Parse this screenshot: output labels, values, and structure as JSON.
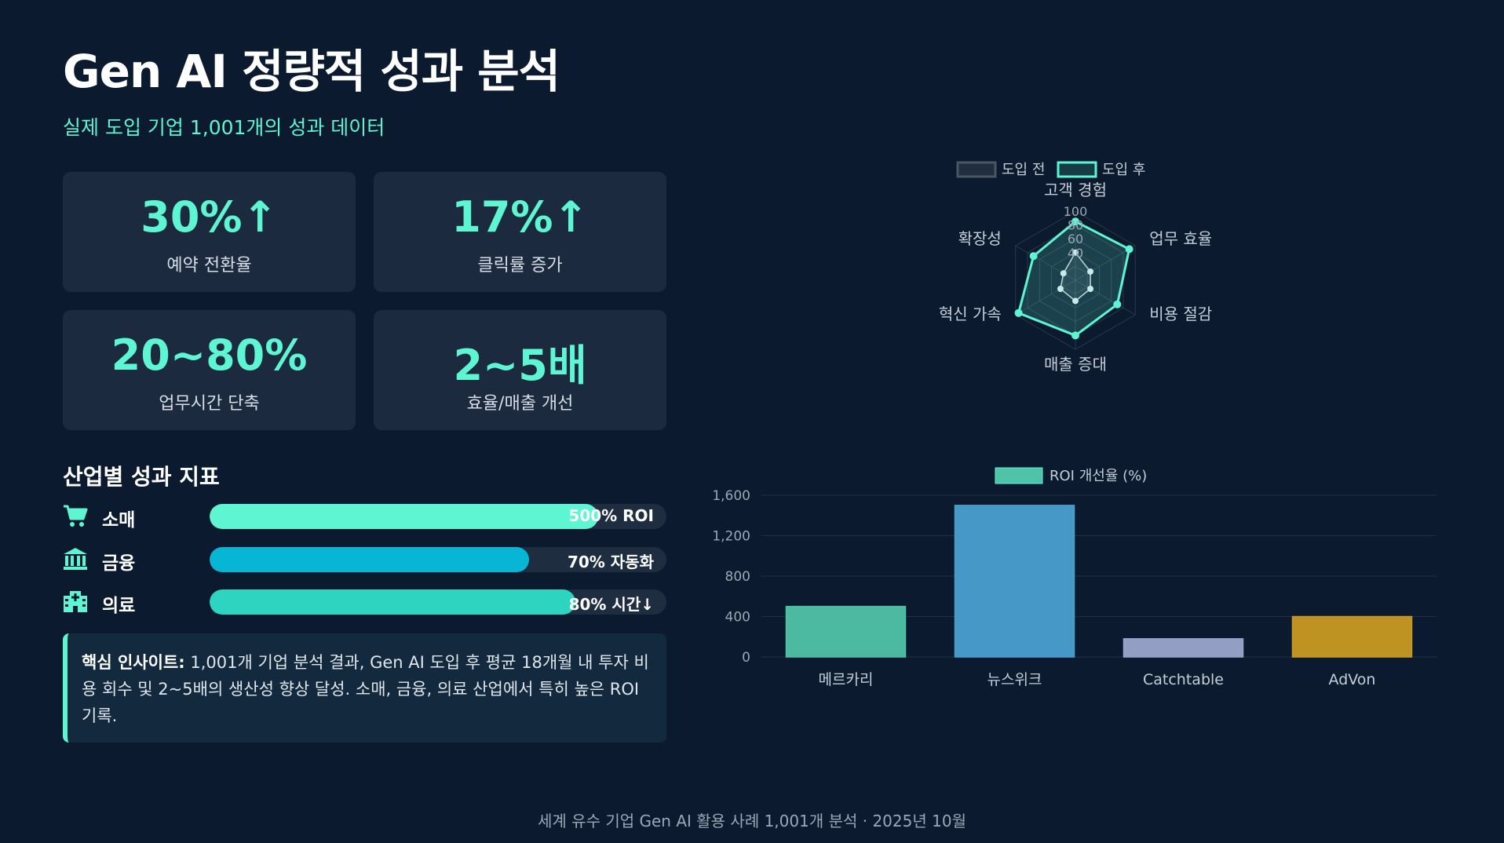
{
  "header": {
    "title": "Gen AI 정량적 성과 분석",
    "subtitle": "실제 도입 기업 1,001개의 성과 데이터"
  },
  "kpis": [
    {
      "value": "30%↑",
      "label": "예약 전환율"
    },
    {
      "value": "17%↑",
      "label": "클릭률 증가"
    },
    {
      "value": "20~80%",
      "label": "업무시간 단축"
    },
    {
      "value": "2~5배",
      "label": "효율/매출 개선"
    }
  ],
  "industry": {
    "title": "산업별 성과 지표",
    "rows": [
      {
        "icon": "shopping-cart-icon",
        "label": "소매",
        "value": "500% ROI",
        "fill": 0.85,
        "color": "#5ef5d2"
      },
      {
        "icon": "bank-icon",
        "label": "금융",
        "value": "70% 자동화",
        "fill": 0.7,
        "color": "#06b6d4"
      },
      {
        "icon": "hospital-icon",
        "label": "의료",
        "value": "80% 시간↓",
        "fill": 0.8,
        "color": "#2dd4bf"
      }
    ]
  },
  "insight": {
    "label": "핵심 인사이트:",
    "text": "1,001개 기업 분석 결과, Gen AI 도입 후 평균 18개월 내 투자 비용 회수 및 2~5배의 생산성 향상 달성. 소매, 금융, 의료 산업에서 특히 높은 ROI 기록."
  },
  "footer": "세계 유수 기업 Gen AI 활용 사례 1,001개 분석 · 2025년 10월",
  "chart_data": [
    {
      "type": "radar",
      "axes": [
        "고객 경험",
        "업무 효율",
        "비용 절감",
        "매출 증대",
        "혁신 가속",
        "확장성"
      ],
      "ticks": [
        "100",
        "80",
        "60",
        "40"
      ],
      "rmax": 100,
      "series": [
        {
          "name": "도입 전",
          "values": [
            40,
            25,
            25,
            30,
            25,
            20
          ],
          "color": "#4b5563"
        },
        {
          "name": "도입 후",
          "values": [
            85,
            90,
            70,
            80,
            95,
            70
          ],
          "color": "#5ef5d2"
        }
      ],
      "legend": "top"
    },
    {
      "type": "bar",
      "categories": [
        "메르카리",
        "뉴스위크",
        "Catchtable",
        "AdVon"
      ],
      "series": [
        {
          "name": "ROI 개선율 (%)",
          "values": [
            500,
            1500,
            180,
            400
          ]
        }
      ],
      "colors": [
        "#4fc3a8",
        "#4a9fd0",
        "#9aa5cc",
        "#c99a22"
      ],
      "y_ticks": [
        "0",
        "400",
        "800",
        "1,200",
        "1,600"
      ],
      "ylim": [
        0,
        1600
      ],
      "legend": "top"
    }
  ]
}
